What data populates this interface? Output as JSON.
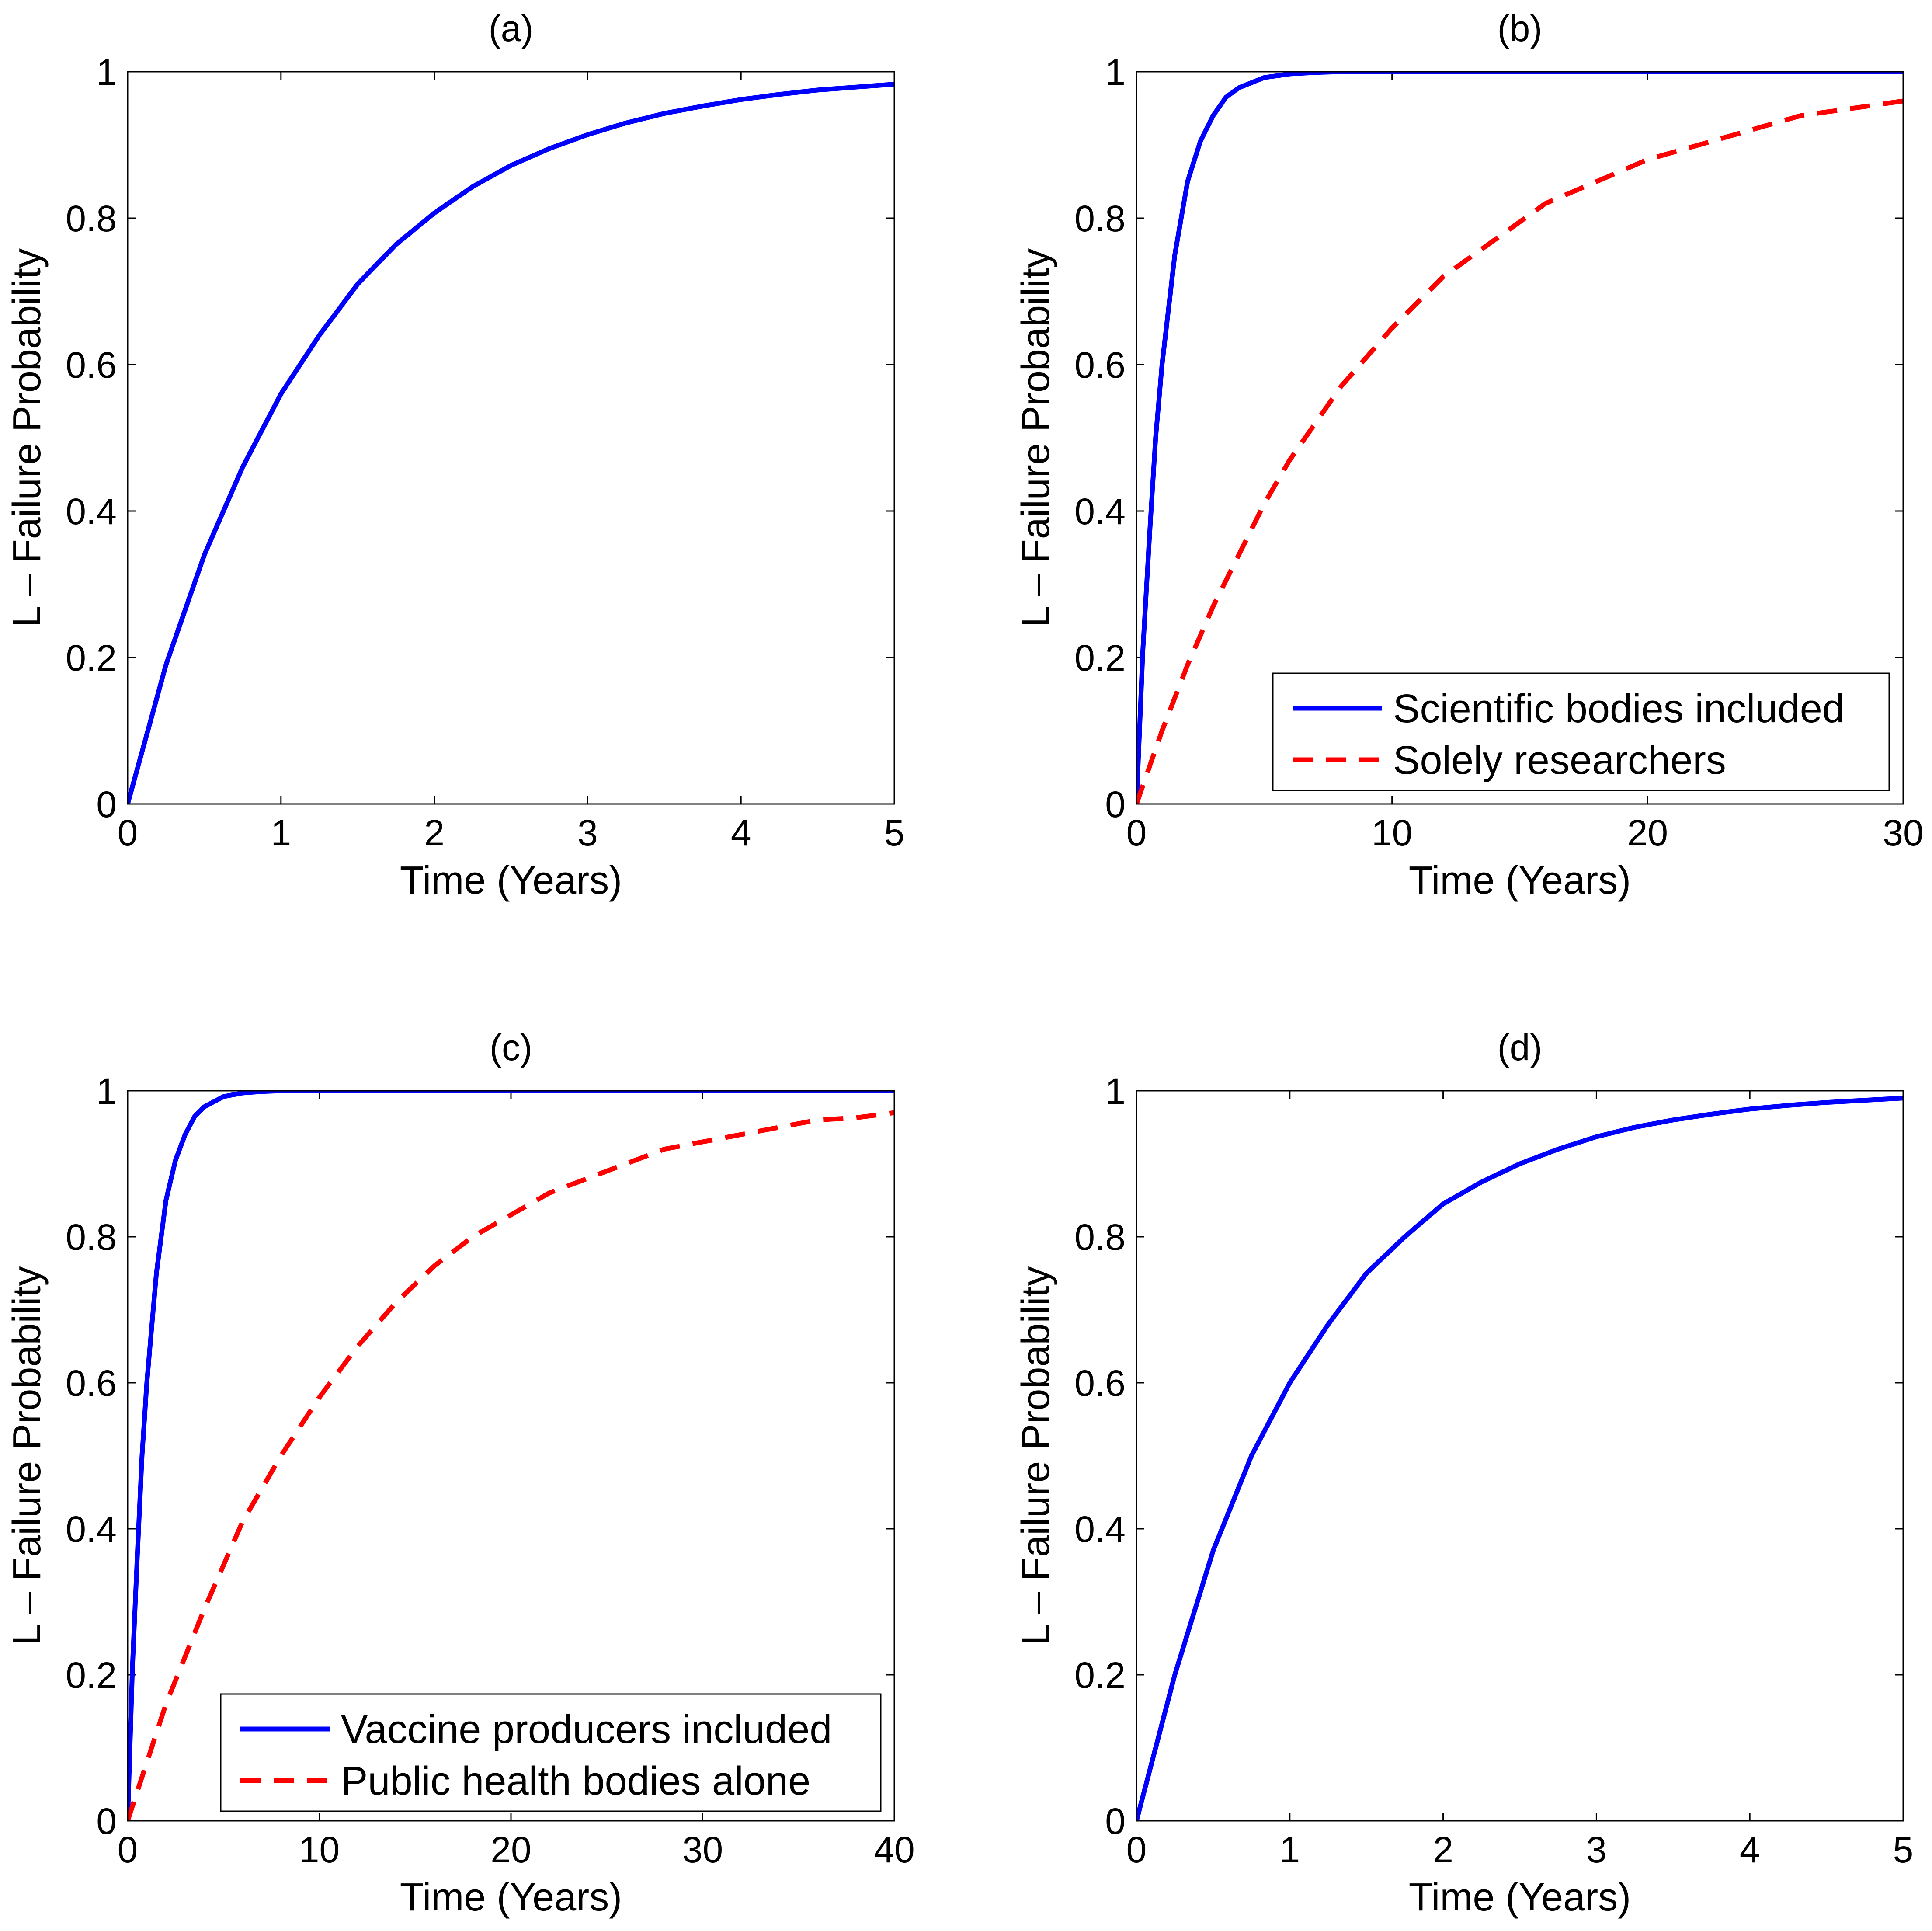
{
  "chart_data": [
    {
      "type": "line",
      "title": "(a)",
      "xlabel": "Time (Years)",
      "ylabel": "L – Failure Probability",
      "xlim": [
        0,
        5
      ],
      "ylim": [
        0,
        1
      ],
      "xticks": [
        0,
        1,
        2,
        3,
        4,
        5
      ],
      "xtick_labels": [
        "0",
        "1",
        "2",
        "3",
        "4",
        "5"
      ],
      "yticks": [
        0,
        0.2,
        0.4,
        0.6,
        0.8,
        1
      ],
      "ytick_labels": [
        "0",
        "0.2",
        "0.4",
        "0.6",
        "0.8",
        "1"
      ],
      "grid": false,
      "legend": null,
      "series": [
        {
          "color": "#0000ff",
          "style": "solid",
          "x": [
            0,
            0.25,
            0.5,
            0.75,
            1,
            1.25,
            1.5,
            1.75,
            2,
            2.25,
            2.5,
            2.75,
            3,
            3.25,
            3.5,
            3.75,
            4,
            4.25,
            4.5,
            4.75,
            5
          ],
          "y": [
            0,
            0.19,
            0.34,
            0.46,
            0.56,
            0.64,
            0.71,
            0.764,
            0.807,
            0.843,
            0.872,
            0.895,
            0.914,
            0.93,
            0.943,
            0.953,
            0.962,
            0.969,
            0.975,
            0.979,
            0.983
          ]
        }
      ]
    },
    {
      "type": "line",
      "title": "(b)",
      "xlabel": "Time (Years)",
      "ylabel": "L – Failure Probability",
      "xlim": [
        0,
        30
      ],
      "ylim": [
        0,
        1
      ],
      "xticks": [
        0,
        10,
        20,
        30
      ],
      "xtick_labels": [
        "0",
        "10",
        "20",
        "30"
      ],
      "yticks": [
        0,
        0.2,
        0.4,
        0.6,
        0.8,
        1
      ],
      "ytick_labels": [
        "0",
        "0.2",
        "0.4",
        "0.6",
        "0.8",
        "1"
      ],
      "grid": false,
      "legend": "lower-right",
      "series": [
        {
          "name": "Scientific bodies included",
          "color": "#0000ff",
          "style": "solid",
          "x": [
            0,
            0.25,
            0.5,
            0.75,
            1,
            1.5,
            2,
            2.5,
            3,
            3.5,
            4,
            5,
            6,
            7,
            8,
            10,
            15,
            20,
            25,
            30
          ],
          "y": [
            0,
            0.21,
            0.36,
            0.5,
            0.6,
            0.75,
            0.85,
            0.905,
            0.94,
            0.965,
            0.978,
            0.992,
            0.997,
            0.999,
            1,
            1,
            1,
            1,
            1,
            1
          ]
        },
        {
          "name": "Solely researchers",
          "color": "#ff0000",
          "style": "dashed",
          "x": [
            0,
            1,
            2,
            3,
            4,
            5,
            6,
            7,
            8,
            9,
            10,
            12,
            14,
            16,
            18,
            20,
            22,
            24,
            26,
            28,
            30
          ],
          "y": [
            0,
            0.1,
            0.19,
            0.27,
            0.34,
            0.41,
            0.47,
            0.52,
            0.57,
            0.61,
            0.65,
            0.72,
            0.77,
            0.82,
            0.85,
            0.88,
            0.9,
            0.92,
            0.94,
            0.95,
            0.96
          ]
        }
      ]
    },
    {
      "type": "line",
      "title": "(c)",
      "xlabel": "Time (Years)",
      "ylabel": "L – Failure Probability",
      "xlim": [
        0,
        40
      ],
      "ylim": [
        0,
        1
      ],
      "xticks": [
        0,
        10,
        20,
        30,
        40
      ],
      "xtick_labels": [
        "0",
        "10",
        "20",
        "30",
        "40"
      ],
      "yticks": [
        0,
        0.2,
        0.4,
        0.6,
        0.8,
        1
      ],
      "ytick_labels": [
        "0",
        "0.2",
        "0.4",
        "0.6",
        "0.8",
        "1"
      ],
      "grid": false,
      "legend": "lower-left",
      "series": [
        {
          "name": "Vaccine producers included",
          "color": "#0000ff",
          "style": "solid",
          "x": [
            0,
            0.25,
            0.5,
            0.75,
            1,
            1.5,
            2,
            2.5,
            3,
            3.5,
            4,
            5,
            6,
            7,
            8,
            10,
            15,
            20,
            25,
            30,
            35,
            40
          ],
          "y": [
            0,
            0.21,
            0.36,
            0.5,
            0.6,
            0.75,
            0.85,
            0.905,
            0.94,
            0.965,
            0.978,
            0.992,
            0.997,
            0.999,
            1,
            1,
            1,
            1,
            1,
            1,
            1,
            1
          ]
        },
        {
          "name": "Public health bodies alone",
          "color": "#ff0000",
          "style": "dashed",
          "x": [
            0,
            2,
            4,
            6,
            8,
            10,
            12,
            14,
            16,
            18,
            20,
            22,
            24,
            26,
            28,
            30,
            32,
            34,
            36,
            38,
            40
          ],
          "y": [
            0,
            0.16,
            0.29,
            0.41,
            0.5,
            0.58,
            0.65,
            0.71,
            0.76,
            0.8,
            0.83,
            0.86,
            0.88,
            0.9,
            0.92,
            0.93,
            0.94,
            0.95,
            0.96,
            0.963,
            0.97
          ]
        }
      ]
    },
    {
      "type": "line",
      "title": "(d)",
      "xlabel": "Time (Years)",
      "ylabel": "L – Failure Probability",
      "xlim": [
        0,
        5
      ],
      "ylim": [
        0,
        1
      ],
      "xticks": [
        0,
        1,
        2,
        3,
        4,
        5
      ],
      "xtick_labels": [
        "0",
        "1",
        "2",
        "3",
        "4",
        "5"
      ],
      "yticks": [
        0,
        0.2,
        0.4,
        0.6,
        0.8,
        1
      ],
      "ytick_labels": [
        "0",
        "0.2",
        "0.4",
        "0.6",
        "0.8",
        "1"
      ],
      "grid": false,
      "legend": null,
      "series": [
        {
          "color": "#0000ff",
          "style": "solid",
          "x": [
            0,
            0.25,
            0.5,
            0.75,
            1,
            1.25,
            1.5,
            1.75,
            2,
            2.25,
            2.5,
            2.75,
            3,
            3.25,
            3.5,
            3.75,
            4,
            4.25,
            4.5,
            4.75,
            5
          ],
          "y": [
            0,
            0.2,
            0.37,
            0.5,
            0.6,
            0.68,
            0.75,
            0.8,
            0.845,
            0.875,
            0.9,
            0.92,
            0.937,
            0.95,
            0.96,
            0.968,
            0.975,
            0.98,
            0.984,
            0.987,
            0.99
          ]
        }
      ]
    }
  ]
}
